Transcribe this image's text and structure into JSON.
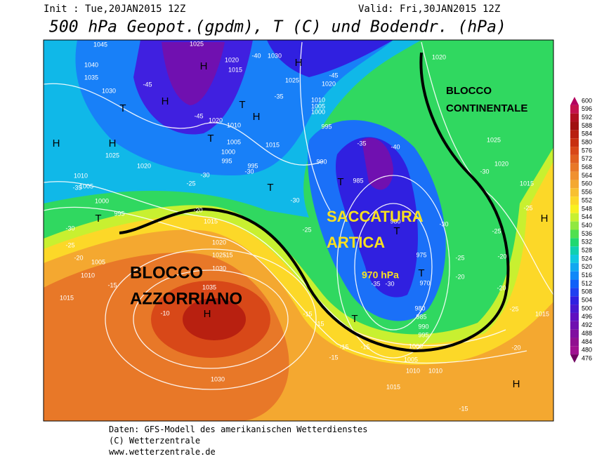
{
  "header": {
    "init": "Init : Tue,20JAN2015 12Z",
    "valid": "Valid: Fri,30JAN2015 12Z",
    "title": "500 hPa Geopot.(gpdm), T (C) und Bodendr. (hPa)"
  },
  "map": {
    "annotations": [
      "BLOCCO",
      "CONTINENTALE",
      "SACCATURA",
      "ARTICA",
      "970 hPa",
      "BLOCCO",
      "AZZORRIANO"
    ],
    "isobar_labels": [
      1045,
      1040,
      1035,
      1030,
      1025,
      1020,
      1015,
      1030,
      1025,
      1020,
      1010,
      1005,
      1000,
      995,
      1020,
      1010,
      1005,
      1000,
      995,
      995,
      1015,
      990,
      1025,
      1020,
      1010,
      1005,
      1000,
      995,
      1015,
      1020,
      1025,
      1030,
      1035,
      1030,
      1005,
      1010,
      1015,
      985,
      980,
      975,
      970,
      980,
      985,
      990,
      995,
      1000,
      1005,
      1010,
      1010,
      1015,
      1025,
      1020,
      1015,
      1020,
      1015
    ],
    "temperature_labels": [
      -45,
      -45,
      -40,
      -45,
      -35,
      -30,
      -30,
      -25,
      -35,
      -20,
      -30,
      -25,
      -20,
      -15,
      -15,
      -10,
      -15,
      -15,
      -15,
      -15,
      -15,
      -35,
      -40,
      -30,
      -25,
      -30,
      -25,
      -20,
      -25,
      -20,
      -20,
      -25,
      -25,
      -20,
      -15,
      -30,
      -30,
      -35
    ],
    "pressure_centers": [
      "H",
      "H",
      "H",
      "H",
      "H",
      "H",
      "H",
      "H",
      "H",
      "T",
      "T",
      "T",
      "T",
      "T",
      "T",
      "T",
      "T",
      "T"
    ]
  },
  "legend": {
    "levels": [
      600,
      596,
      592,
      588,
      584,
      580,
      576,
      572,
      568,
      564,
      560,
      556,
      552,
      548,
      544,
      540,
      536,
      532,
      528,
      524,
      520,
      516,
      512,
      508,
      504,
      500,
      496,
      492,
      488,
      484,
      480,
      476
    ],
    "colors": [
      "#b3005e",
      "#c4124d",
      "#b01020",
      "#a01010",
      "#b82010",
      "#c83010",
      "#d84818",
      "#e06020",
      "#e87828",
      "#f09030",
      "#f4a830",
      "#f8c030",
      "#fcd828",
      "#f8f020",
      "#c8f030",
      "#90e840",
      "#50e050",
      "#20d870",
      "#10d0b0",
      "#10c8e0",
      "#10a8f0",
      "#1088f8",
      "#1060f8",
      "#2040f0",
      "#3020e0",
      "#4818d0",
      "#6010c0",
      "#7010b0",
      "#8010a0",
      "#901090",
      "#a01090",
      "#700060"
    ]
  },
  "footer": [
    "Daten: GFS-Modell des amerikanischen Wetterdienstes",
    "(C) Wetterzentrale",
    "www.wetterzentrale.de"
  ]
}
